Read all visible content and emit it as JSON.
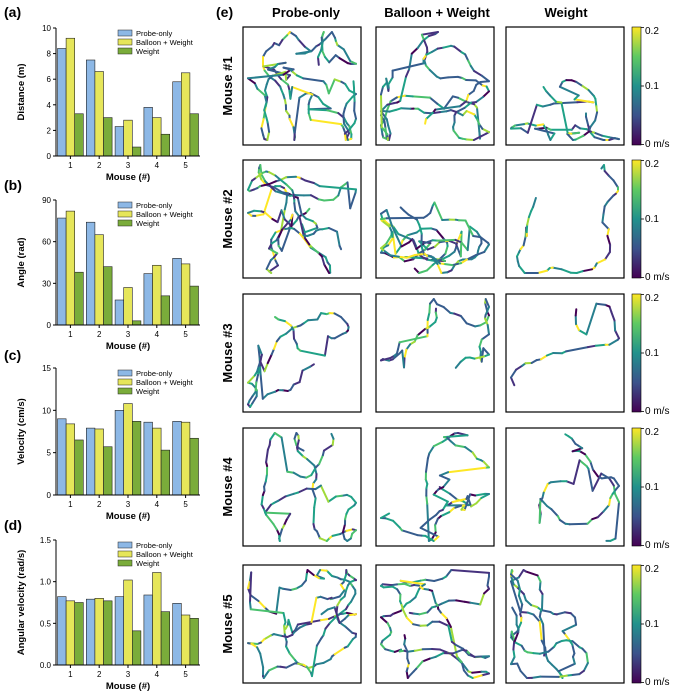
{
  "panel_labels": {
    "a": "(a)",
    "b": "(b)",
    "c": "(c)",
    "d": "(d)",
    "e": "(e)"
  },
  "colors": {
    "probe_only": "#8db8e6",
    "balloon_weight": "#e6e65a",
    "weight": "#7aac3a"
  },
  "chart_data": [
    {
      "type": "bar",
      "panel": "a",
      "categories": [
        "1",
        "2",
        "3",
        "4",
        "5"
      ],
      "series": [
        {
          "name": "Probe-only",
          "values": [
            8.4,
            7.5,
            2.3,
            3.8,
            5.8
          ]
        },
        {
          "name": "Balloon + Weight",
          "values": [
            9.2,
            6.6,
            2.8,
            3.0,
            6.5
          ]
        },
        {
          "name": "Weight",
          "values": [
            3.3,
            3.0,
            0.7,
            1.7,
            3.3
          ]
        }
      ],
      "xlabel": "Mouse (#)",
      "ylabel": "Distance (m)",
      "ylim": [
        0,
        10
      ],
      "yticks": [
        "0",
        "2",
        "4",
        "6",
        "8",
        "10"
      ]
    },
    {
      "type": "bar",
      "panel": "b",
      "categories": [
        "1",
        "2",
        "3",
        "4",
        "5"
      ],
      "series": [
        {
          "name": "Probe-only",
          "values": [
            77,
            74,
            18,
            37,
            48
          ]
        },
        {
          "name": "Balloon + Weight",
          "values": [
            82,
            65,
            27,
            43,
            44
          ]
        },
        {
          "name": "Weight",
          "values": [
            38,
            42,
            3,
            21,
            28
          ]
        }
      ],
      "xlabel": "Mouse (#)",
      "ylabel": "Angle (rad)",
      "ylim": [
        0,
        90
      ],
      "yticks": [
        "0",
        "30",
        "60",
        "90"
      ]
    },
    {
      "type": "bar",
      "panel": "c",
      "categories": [
        "1",
        "2",
        "3",
        "4",
        "5"
      ],
      "series": [
        {
          "name": "Probe-only",
          "values": [
            9.0,
            7.9,
            10.0,
            8.6,
            8.7
          ]
        },
        {
          "name": "Balloon + Weight",
          "values": [
            8.4,
            7.8,
            10.8,
            7.9,
            8.6
          ]
        },
        {
          "name": "Weight",
          "values": [
            6.5,
            5.7,
            8.7,
            5.3,
            6.7
          ]
        }
      ],
      "xlabel": "Mouse (#)",
      "ylabel": "Velocity (cm/s)",
      "ylim": [
        0,
        15
      ],
      "yticks": [
        "0",
        "5",
        "10",
        "15"
      ]
    },
    {
      "type": "bar",
      "panel": "d",
      "categories": [
        "1",
        "2",
        "3",
        "4",
        "5"
      ],
      "series": [
        {
          "name": "Probe-only",
          "values": [
            0.82,
            0.79,
            0.82,
            0.84,
            0.74
          ]
        },
        {
          "name": "Balloon + Weight",
          "values": [
            0.77,
            0.8,
            1.02,
            1.11,
            0.6
          ]
        },
        {
          "name": "Weight",
          "values": [
            0.75,
            0.77,
            0.41,
            0.64,
            0.56
          ]
        }
      ],
      "xlabel": "Mouse (#)",
      "ylabel": "Angular velocity (rad/s)",
      "ylim": [
        0,
        1.5
      ],
      "yticks": [
        "0.0",
        "0.5",
        "1.0",
        "1.5"
      ]
    }
  ],
  "trajectories": {
    "columns": [
      "Probe-only",
      "Balloon + Weight",
      "Weight"
    ],
    "rows": [
      "Mouse #1",
      "Mouse #2",
      "Mouse #3",
      "Mouse #4",
      "Mouse #5"
    ],
    "colorbar": {
      "max": "0.2",
      "mid": "0.1",
      "min": "0 m/s"
    },
    "colormap": "viridis"
  }
}
